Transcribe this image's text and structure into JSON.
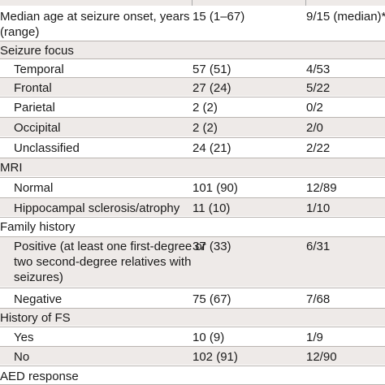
{
  "table": {
    "rows": [
      {
        "label": "Median age at seizure onset, years",
        "label2": "(range)",
        "col2": "15 (1–67)",
        "col3": "9/15 (median)*"
      },
      {
        "label": "Seizure focus",
        "col2": "",
        "col3": ""
      },
      {
        "label": "Temporal",
        "col2": "57 (51)",
        "col3": "4/53"
      },
      {
        "label": "Frontal",
        "col2": "27 (24)",
        "col3": "5/22"
      },
      {
        "label": "Parietal",
        "col2": "2 (2)",
        "col3": "0/2"
      },
      {
        "label": "Occipital",
        "col2": "2 (2)",
        "col3": "2/0"
      },
      {
        "label": "Unclassified",
        "col2": "24 (21)",
        "col3": "2/22"
      },
      {
        "label": "MRI",
        "col2": "",
        "col3": ""
      },
      {
        "label": "Normal",
        "col2": "101 (90)",
        "col3": "12/89"
      },
      {
        "label": "Hippocampal sclerosis/atrophy",
        "col2": "11 (10)",
        "col3": "1/10"
      },
      {
        "label": "Family history",
        "col2": "",
        "col3": ""
      },
      {
        "label": "Positive (at least one first-degree or",
        "label2": "two second-degree relatives with",
        "label3": "seizures)",
        "col2": "37 (33)",
        "col3": "6/31"
      },
      {
        "label": "Negative",
        "col2": "75 (67)",
        "col3": "7/68"
      },
      {
        "label": "History of FS",
        "col2": "",
        "col3": ""
      },
      {
        "label": "Yes",
        "col2": "10 (9)",
        "col3": "1/9"
      },
      {
        "label": "No",
        "col2": "102 (91)",
        "col3": "12/90"
      },
      {
        "label": "AED response",
        "col2": "",
        "col3": ""
      }
    ]
  }
}
